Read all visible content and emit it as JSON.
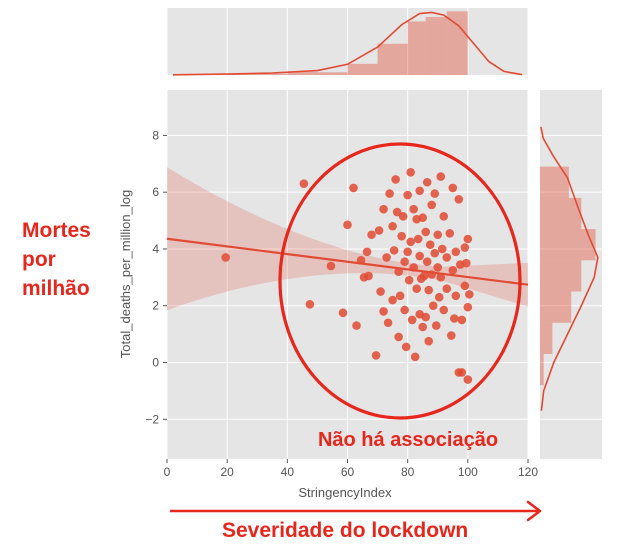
{
  "chart_data": {
    "type": "scatter",
    "variant": "jointplot-with-regression",
    "xlabel": "StringencyIndex",
    "ylabel": "Total_deaths_per_million_log",
    "xlim": [
      0,
      120
    ],
    "ylim": [
      -3.4,
      9.6
    ],
    "xticks": [
      0,
      20,
      40,
      60,
      80,
      100,
      120
    ],
    "yticks": [
      -2,
      0,
      2,
      4,
      6,
      8
    ],
    "grid": true,
    "background": "#e5e5e5",
    "series_color": "#e24a33",
    "regression": {
      "x": [
        0,
        120
      ],
      "y": [
        4.36,
        2.74
      ]
    },
    "points": [
      [
        19.5,
        3.7
      ],
      [
        45.5,
        6.3
      ],
      [
        47.5,
        2.05
      ],
      [
        54.5,
        3.4
      ],
      [
        58.5,
        1.75
      ],
      [
        60,
        4.85
      ],
      [
        62,
        6.15
      ],
      [
        63,
        1.3
      ],
      [
        64.5,
        3.6
      ],
      [
        65.5,
        3.0
      ],
      [
        66.5,
        3.9
      ],
      [
        67,
        3.05
      ],
      [
        68,
        4.5
      ],
      [
        69.5,
        0.25
      ],
      [
        70.5,
        4.65
      ],
      [
        71,
        2.5
      ],
      [
        72,
        5.4
      ],
      [
        72,
        1.8
      ],
      [
        73,
        3.7
      ],
      [
        73.5,
        1.4
      ],
      [
        74,
        5.95
      ],
      [
        75,
        4.8
      ],
      [
        75,
        2.2
      ],
      [
        75.5,
        3.95
      ],
      [
        76,
        6.45
      ],
      [
        76.5,
        5.3
      ],
      [
        77,
        3.2
      ],
      [
        77,
        0.9
      ],
      [
        77.5,
        2.35
      ],
      [
        78,
        4.45
      ],
      [
        78.5,
        5.15
      ],
      [
        79,
        3.55
      ],
      [
        79,
        1.85
      ],
      [
        79.5,
        0.55
      ],
      [
        80,
        5.9
      ],
      [
        80,
        3.9
      ],
      [
        80.5,
        2.9
      ],
      [
        81,
        6.7
      ],
      [
        81,
        4.25
      ],
      [
        81.5,
        1.5
      ],
      [
        82,
        5.4
      ],
      [
        82,
        3.35
      ],
      [
        82.5,
        0.2
      ],
      [
        83,
        5.05
      ],
      [
        83,
        2.6
      ],
      [
        83.5,
        4.35
      ],
      [
        84,
        6.05
      ],
      [
        84,
        3.75
      ],
      [
        84,
        1.7
      ],
      [
        84.5,
        2.95
      ],
      [
        85,
        5.1
      ],
      [
        85,
        1.25
      ],
      [
        85.5,
        3.05
      ],
      [
        86,
        4.6
      ],
      [
        86,
        1.6
      ],
      [
        86.5,
        6.35
      ],
      [
        86.5,
        3.55
      ],
      [
        87,
        2.55
      ],
      [
        87,
        0.75
      ],
      [
        87.5,
        4.15
      ],
      [
        88,
        5.55
      ],
      [
        88,
        3.1
      ],
      [
        88.5,
        2.0
      ],
      [
        89,
        3.85
      ],
      [
        89,
        5.95
      ],
      [
        89.5,
        1.3
      ],
      [
        90,
        4.5
      ],
      [
        90,
        3.35
      ],
      [
        90.5,
        2.3
      ],
      [
        91,
        6.55
      ],
      [
        91,
        3.0
      ],
      [
        91.5,
        4.0
      ],
      [
        92,
        5.15
      ],
      [
        92,
        1.85
      ],
      [
        93,
        3.7
      ],
      [
        93,
        2.6
      ],
      [
        94,
        4.55
      ],
      [
        94.5,
        0.95
      ],
      [
        95,
        3.25
      ],
      [
        95,
        6.15
      ],
      [
        95.5,
        1.55
      ],
      [
        96,
        3.9
      ],
      [
        96,
        2.35
      ],
      [
        97,
        5.75
      ],
      [
        97,
        -0.35
      ],
      [
        97.5,
        3.45
      ],
      [
        98,
        1.5
      ],
      [
        98,
        -0.35
      ],
      [
        99,
        4.05
      ],
      [
        99,
        2.7
      ],
      [
        99.5,
        3.5
      ],
      [
        100,
        1.95
      ],
      [
        100,
        -0.6
      ],
      [
        100,
        4.35
      ],
      [
        100.5,
        2.4
      ]
    ],
    "marginal_x": {
      "bins": [
        [
          20,
          30,
          0.3
        ],
        [
          30,
          40,
          0.6
        ],
        [
          40,
          50,
          1.3
        ],
        [
          50,
          60,
          1.2
        ],
        [
          60,
          70,
          5.0
        ],
        [
          70,
          80,
          14.0
        ],
        [
          80,
          86,
          24.0
        ],
        [
          86,
          93,
          26.0
        ],
        [
          93,
          100,
          28.5
        ]
      ],
      "kde": [
        [
          2,
          0.1
        ],
        [
          20,
          0.4
        ],
        [
          35,
          0.9
        ],
        [
          50,
          2.0
        ],
        [
          60,
          4.8
        ],
        [
          70,
          12.5
        ],
        [
          78,
          22.5
        ],
        [
          84,
          27.5
        ],
        [
          88,
          28.0
        ],
        [
          92,
          26.8
        ],
        [
          97,
          22.0
        ],
        [
          102,
          14.0
        ],
        [
          107,
          6.0
        ],
        [
          112,
          1.6
        ],
        [
          118,
          0.2
        ]
      ]
    },
    "marginal_y": {
      "bins": [
        [
          -0.8,
          0.3,
          0.8
        ],
        [
          0.3,
          1.4,
          2.7
        ],
        [
          1.4,
          2.5,
          6.8
        ],
        [
          2.5,
          3.6,
          9.0
        ],
        [
          3.6,
          4.7,
          12.1
        ],
        [
          4.7,
          5.8,
          9.0
        ],
        [
          5.8,
          6.9,
          6.3
        ]
      ],
      "kde": [
        [
          -1.7,
          0.3
        ],
        [
          -1.0,
          0.8
        ],
        [
          0.0,
          3.0
        ],
        [
          1.0,
          6.0
        ],
        [
          2.0,
          9.0
        ],
        [
          3.0,
          11.8
        ],
        [
          3.7,
          12.6
        ],
        [
          4.5,
          10.5
        ],
        [
          5.5,
          8.2
        ],
        [
          6.5,
          6.0
        ],
        [
          7.3,
          2.8
        ],
        [
          7.9,
          0.7
        ],
        [
          8.3,
          0.2
        ]
      ]
    }
  },
  "annotations": {
    "left_lines": [
      "Mortes",
      "por",
      "milhão"
    ],
    "bottom_label": "Severidade do lockdown",
    "circle_label": "Não há associação",
    "accent_color": "#e8271c"
  }
}
